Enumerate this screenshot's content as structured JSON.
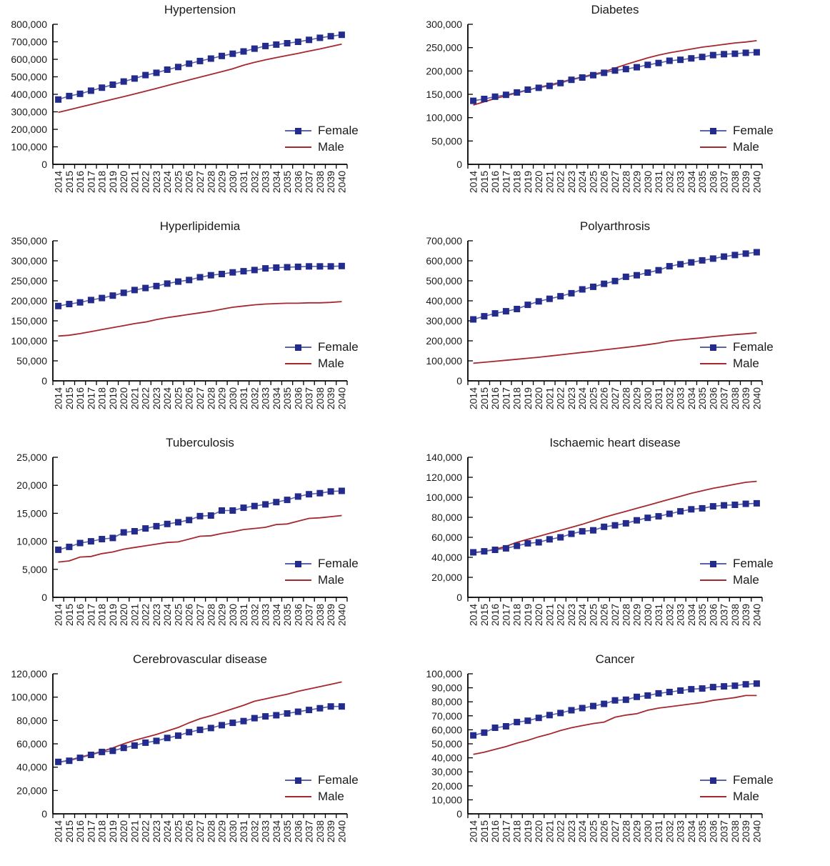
{
  "page": {
    "background": "#ffffff"
  },
  "legend": {
    "position": "inside-right",
    "female_label": "Female",
    "male_label": "Male"
  },
  "colors": {
    "female_line": "#5a62ab",
    "female_marker": "#232b8c",
    "male_line": "#a6282e",
    "axis": "#000000",
    "text": "#1a1a1a"
  },
  "chart_data": [
    {
      "type": "line",
      "title": "Hypertension",
      "ylim": [
        0,
        800000
      ],
      "ytick_step": 100000,
      "grid": false,
      "legend_position": "inside-right",
      "categories": [
        2014,
        2015,
        2016,
        2017,
        2018,
        2019,
        2020,
        2021,
        2022,
        2023,
        2024,
        2025,
        2026,
        2027,
        2028,
        2029,
        2030,
        2031,
        2032,
        2033,
        2034,
        2035,
        2036,
        2037,
        2038,
        2039,
        2040
      ],
      "series": [
        {
          "name": "Female",
          "values": [
            370000,
            390000,
            403000,
            421000,
            438000,
            455000,
            473000,
            490000,
            510000,
            523000,
            541000,
            556000,
            575000,
            590000,
            604000,
            619000,
            632000,
            645000,
            661000,
            676000,
            684000,
            692000,
            700000,
            711000,
            723000,
            732000,
            740000
          ]
        },
        {
          "name": "Male",
          "values": [
            297000,
            312000,
            327000,
            342000,
            357000,
            372000,
            387000,
            402000,
            418000,
            434000,
            450000,
            466000,
            482000,
            498000,
            514000,
            530000,
            546000,
            566000,
            583000,
            597000,
            610000,
            622000,
            634000,
            647000,
            659000,
            673000,
            687000
          ]
        }
      ]
    },
    {
      "type": "line",
      "title": "Diabetes",
      "ylim": [
        0,
        300000
      ],
      "ytick_step": 50000,
      "grid": false,
      "legend_position": "inside-right",
      "categories": [
        2014,
        2015,
        2016,
        2017,
        2018,
        2019,
        2020,
        2021,
        2022,
        2023,
        2024,
        2025,
        2026,
        2027,
        2028,
        2029,
        2030,
        2031,
        2032,
        2033,
        2034,
        2035,
        2036,
        2037,
        2038,
        2039,
        2040
      ],
      "series": [
        {
          "name": "Female",
          "values": [
            136000,
            140000,
            145000,
            149000,
            154000,
            160000,
            164000,
            168000,
            174000,
            181000,
            186000,
            191000,
            196000,
            201000,
            204000,
            208000,
            213000,
            217000,
            222000,
            224000,
            227000,
            230000,
            234000,
            236000,
            237000,
            239000,
            240000
          ]
        },
        {
          "name": "Male",
          "values": [
            127000,
            134000,
            141000,
            147000,
            153000,
            159000,
            165000,
            170000,
            176000,
            182000,
            187000,
            193000,
            198000,
            206000,
            214000,
            221000,
            228000,
            234000,
            239000,
            243000,
            247000,
            251000,
            254000,
            257000,
            260000,
            262000,
            265000
          ]
        }
      ]
    },
    {
      "type": "line",
      "title": "Hyperlipidemia",
      "ylim": [
        0,
        350000
      ],
      "ytick_step": 50000,
      "grid": false,
      "legend_position": "inside-right",
      "categories": [
        2014,
        2015,
        2016,
        2017,
        2018,
        2019,
        2020,
        2021,
        2022,
        2023,
        2024,
        2025,
        2026,
        2027,
        2028,
        2029,
        2030,
        2031,
        2032,
        2033,
        2034,
        2035,
        2036,
        2037,
        2038,
        2039,
        2040
      ],
      "series": [
        {
          "name": "Female",
          "values": [
            187000,
            192000,
            196000,
            202000,
            207000,
            213000,
            220000,
            227000,
            232000,
            237000,
            243000,
            248000,
            252000,
            259000,
            264000,
            267000,
            271000,
            274000,
            277000,
            281000,
            283000,
            284000,
            285000,
            286000,
            286000,
            286000,
            287000
          ]
        },
        {
          "name": "Male",
          "values": [
            112000,
            114000,
            118000,
            123000,
            128000,
            133000,
            138000,
            143000,
            147000,
            153000,
            158000,
            162000,
            166000,
            170000,
            174000,
            179000,
            184000,
            187000,
            190000,
            192000,
            193000,
            194000,
            194000,
            195000,
            195000,
            196000,
            198000
          ]
        }
      ]
    },
    {
      "type": "line",
      "title": "Polyarthrosis",
      "ylim": [
        0,
        700000
      ],
      "ytick_step": 100000,
      "grid": false,
      "legend_position": "inside-right",
      "categories": [
        2014,
        2015,
        2016,
        2017,
        2018,
        2019,
        2020,
        2021,
        2022,
        2023,
        2024,
        2025,
        2026,
        2027,
        2028,
        2029,
        2030,
        2031,
        2032,
        2033,
        2034,
        2035,
        2036,
        2037,
        2038,
        2039,
        2040
      ],
      "series": [
        {
          "name": "Female",
          "values": [
            307000,
            323000,
            337000,
            348000,
            359000,
            380000,
            397000,
            410000,
            423000,
            438000,
            457000,
            470000,
            485000,
            499000,
            520000,
            528000,
            541000,
            553000,
            573000,
            583000,
            592000,
            602000,
            611000,
            621000,
            629000,
            636000,
            643000
          ]
        },
        {
          "name": "Male",
          "values": [
            88000,
            93000,
            98000,
            103000,
            108000,
            113000,
            118000,
            124000,
            130000,
            136000,
            142000,
            148000,
            155000,
            161000,
            167000,
            174000,
            181000,
            189000,
            199000,
            205000,
            210000,
            215000,
            221000,
            226000,
            231000,
            235000,
            240000
          ]
        }
      ]
    },
    {
      "type": "line",
      "title": "Tuberculosis",
      "ylim": [
        0,
        25000
      ],
      "ytick_step": 5000,
      "grid": false,
      "legend_position": "inside-right",
      "categories": [
        2014,
        2015,
        2016,
        2017,
        2018,
        2019,
        2020,
        2021,
        2022,
        2023,
        2024,
        2025,
        2026,
        2027,
        2028,
        2029,
        2030,
        2031,
        2032,
        2033,
        2034,
        2035,
        2036,
        2037,
        2038,
        2039,
        2040
      ],
      "series": [
        {
          "name": "Female",
          "values": [
            8500,
            9000,
            9700,
            10000,
            10400,
            10600,
            11600,
            11800,
            12300,
            12700,
            13100,
            13400,
            13800,
            14500,
            14600,
            15500,
            15500,
            16000,
            16300,
            16600,
            17000,
            17400,
            18000,
            18400,
            18600,
            18900,
            19000
          ]
        },
        {
          "name": "Male",
          "values": [
            6300,
            6500,
            7200,
            7300,
            7800,
            8100,
            8600,
            8900,
            9200,
            9500,
            9800,
            9900,
            10400,
            10900,
            11000,
            11400,
            11700,
            12100,
            12300,
            12500,
            13000,
            13100,
            13600,
            14100,
            14200,
            14400,
            14600
          ]
        }
      ]
    },
    {
      "type": "line",
      "title": "Ischaemic heart disease",
      "ylim": [
        0,
        140000
      ],
      "ytick_step": 20000,
      "grid": false,
      "legend_position": "inside-right",
      "categories": [
        2014,
        2015,
        2016,
        2017,
        2018,
        2019,
        2020,
        2021,
        2022,
        2023,
        2024,
        2025,
        2026,
        2027,
        2028,
        2029,
        2030,
        2031,
        2032,
        2033,
        2034,
        2035,
        2036,
        2037,
        2038,
        2039,
        2040
      ],
      "series": [
        {
          "name": "Female",
          "values": [
            45000,
            46000,
            47500,
            49000,
            51500,
            54000,
            55000,
            58000,
            60000,
            63500,
            66000,
            67000,
            70500,
            72000,
            74000,
            77000,
            79500,
            81000,
            83500,
            86000,
            88000,
            89000,
            91000,
            92000,
            92500,
            93500,
            94000
          ]
        },
        {
          "name": "Male",
          "values": [
            44500,
            46000,
            48000,
            51000,
            55000,
            58000,
            61000,
            64000,
            67000,
            70000,
            73000,
            76500,
            80000,
            83000,
            86000,
            89000,
            92000,
            95000,
            98000,
            101000,
            104000,
            106500,
            109000,
            111000,
            113000,
            115000,
            116000
          ]
        }
      ]
    },
    {
      "type": "line",
      "title": "Cerebrovascular disease",
      "ylim": [
        0,
        120000
      ],
      "ytick_step": 20000,
      "grid": false,
      "legend_position": "inside-right",
      "categories": [
        2014,
        2015,
        2016,
        2017,
        2018,
        2019,
        2020,
        2021,
        2022,
        2023,
        2024,
        2025,
        2026,
        2027,
        2028,
        2029,
        2030,
        2031,
        2032,
        2033,
        2034,
        2035,
        2036,
        2037,
        2038,
        2039,
        2040
      ],
      "series": [
        {
          "name": "Female",
          "values": [
            44500,
            45500,
            48000,
            50500,
            53000,
            54000,
            56500,
            58500,
            61000,
            62500,
            65000,
            67000,
            70000,
            72000,
            73500,
            76000,
            78000,
            79500,
            82000,
            83500,
            84500,
            86000,
            87500,
            89000,
            90500,
            92000,
            92000
          ]
        },
        {
          "name": "Male",
          "values": [
            44000,
            46000,
            48500,
            51000,
            53500,
            56500,
            60000,
            63000,
            65500,
            68000,
            71000,
            74000,
            78000,
            81500,
            84000,
            87000,
            90000,
            93000,
            96500,
            98500,
            100500,
            102500,
            105000,
            107000,
            109000,
            111000,
            113000
          ]
        }
      ]
    },
    {
      "type": "line",
      "title": "Cancer",
      "ylim": [
        0,
        100000
      ],
      "ytick_step": 10000,
      "grid": false,
      "legend_position": "inside-right",
      "categories": [
        2014,
        2015,
        2016,
        2017,
        2018,
        2019,
        2020,
        2021,
        2022,
        2023,
        2024,
        2025,
        2026,
        2027,
        2028,
        2029,
        2030,
        2031,
        2032,
        2033,
        2034,
        2035,
        2036,
        2037,
        2038,
        2039,
        2040
      ],
      "series": [
        {
          "name": "Female",
          "values": [
            56000,
            58000,
            61500,
            62500,
            65500,
            66500,
            68500,
            70500,
            72000,
            74000,
            75500,
            77000,
            78500,
            81000,
            81500,
            83500,
            84500,
            86000,
            87000,
            88000,
            89000,
            89500,
            90500,
            91000,
            91500,
            92500,
            93000
          ]
        },
        {
          "name": "Male",
          "values": [
            42500,
            44000,
            46000,
            48000,
            50500,
            52500,
            55000,
            57000,
            59500,
            61500,
            63000,
            64500,
            65500,
            69000,
            70500,
            71500,
            74000,
            75500,
            76500,
            77500,
            78500,
            79500,
            81000,
            82000,
            83000,
            84500,
            84500
          ]
        }
      ]
    }
  ]
}
